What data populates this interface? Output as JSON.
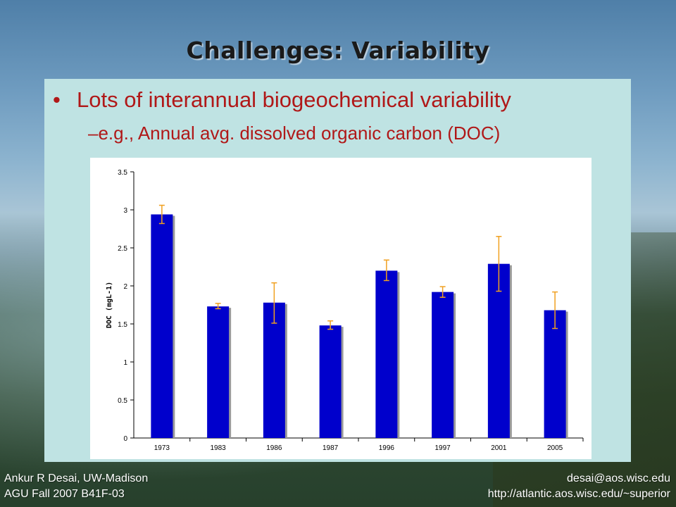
{
  "slide": {
    "title": "Challenges: Variability",
    "bullet": "Lots of interannual biogeochemical variability",
    "subbullet": "–e.g., Annual avg. dissolved organic carbon (DOC)"
  },
  "footer": {
    "left_line1": "Ankur R Desai, UW-Madison",
    "left_line2": "AGU Fall 2007 B41F-03",
    "right_line1": "desai@aos.wisc.edu",
    "right_line2": "http://atlantic.aos.wisc.edu/~superior"
  },
  "colors": {
    "bar": "#0000cc",
    "error_bar": "#f0a020",
    "text_red": "#b01818"
  },
  "chart_data": {
    "type": "bar",
    "categories": [
      "1973",
      "1983",
      "1986",
      "1987",
      "1996",
      "1997",
      "2001",
      "2005"
    ],
    "values": [
      2.94,
      1.73,
      1.78,
      1.48,
      2.2,
      1.92,
      2.29,
      1.68
    ],
    "error_low": [
      2.82,
      1.7,
      1.51,
      1.43,
      2.07,
      1.85,
      1.93,
      1.44
    ],
    "error_high": [
      3.06,
      1.77,
      2.04,
      1.54,
      2.34,
      1.99,
      2.65,
      1.92
    ],
    "ylabel": "DOC (mgL-1)",
    "xlabel": "",
    "ylim": [
      0,
      3.5
    ],
    "yticks": [
      "0",
      "0.5",
      "1",
      "1.5",
      "2",
      "2.5",
      "3",
      "3.5"
    ],
    "grid": false,
    "legend": "none"
  }
}
